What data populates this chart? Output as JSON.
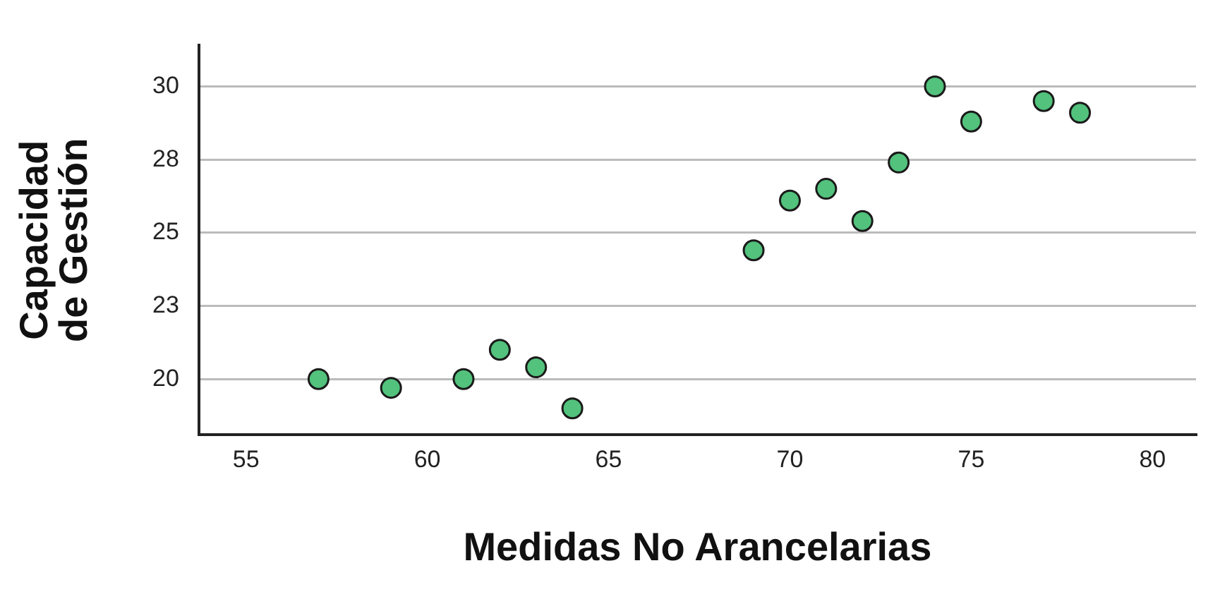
{
  "chart_data": {
    "type": "scatter",
    "xlabel": "Medidas No Arancelarias",
    "ylabel": "Capacidad\nde Gestión",
    "x": [
      57,
      59,
      61,
      62,
      63,
      64,
      69,
      70,
      71,
      72,
      73,
      74,
      75,
      77,
      78
    ],
    "series": [
      {
        "color": "#52c27c",
        "values": [
          20.0,
          19.7,
          20.0,
          21.0,
          20.4,
          19.0,
          24.4,
          26.1,
          26.5,
          25.4,
          27.4,
          30.0,
          28.8,
          29.5,
          29.1
        ]
      }
    ],
    "xlim": [
      53.7,
      81.2
    ],
    "ylim": [
      18.1,
      31.4
    ],
    "xticks": [
      55,
      60,
      65,
      70,
      75,
      80
    ],
    "yticks": [
      30,
      {
        "value": 27.5,
        "label": "28"
      },
      25,
      {
        "value": 22.5,
        "label": "23"
      },
      20
    ],
    "grid": "y",
    "marker": "circle",
    "legend": false
  }
}
